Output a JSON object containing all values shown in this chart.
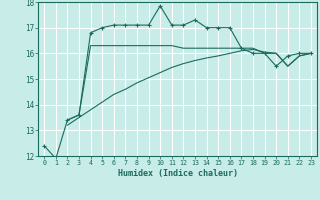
{
  "xlabel": "Humidex (Indice chaleur)",
  "bg_color": "#c8ece8",
  "grid_color": "#ffffff",
  "line_color": "#1a6b5e",
  "xlim": [
    -0.5,
    23.5
  ],
  "ylim": [
    12,
    18
  ],
  "xticks": [
    0,
    1,
    2,
    3,
    4,
    5,
    6,
    7,
    8,
    9,
    10,
    11,
    12,
    13,
    14,
    15,
    16,
    17,
    18,
    19,
    20,
    21,
    22,
    23
  ],
  "yticks": [
    12,
    13,
    14,
    15,
    16,
    17,
    18
  ],
  "series1_x": [
    0,
    1,
    2,
    3,
    4,
    5,
    6,
    7,
    8,
    9,
    10,
    11,
    12,
    13,
    14,
    15,
    16,
    17,
    18,
    19,
    20,
    21,
    22,
    23
  ],
  "series1_y": [
    12.4,
    11.9,
    13.4,
    13.6,
    16.8,
    17.0,
    17.1,
    17.1,
    17.1,
    17.1,
    17.85,
    17.1,
    17.1,
    17.3,
    17.0,
    17.0,
    17.0,
    16.2,
    16.0,
    16.0,
    15.5,
    15.9,
    16.0,
    16.0
  ],
  "series2_x": [
    2,
    3,
    4,
    5,
    6,
    7,
    8,
    9,
    10,
    11,
    12,
    13,
    14,
    15,
    16,
    17,
    18,
    19,
    20,
    21,
    22,
    23
  ],
  "series2_y": [
    13.4,
    13.6,
    16.3,
    16.3,
    16.3,
    16.3,
    16.3,
    16.3,
    16.3,
    16.3,
    16.2,
    16.2,
    16.2,
    16.2,
    16.2,
    16.2,
    16.2,
    16.0,
    16.0,
    15.5,
    15.9,
    16.0
  ],
  "series3_x": [
    2,
    3,
    4,
    5,
    6,
    7,
    8,
    9,
    10,
    11,
    12,
    13,
    14,
    15,
    16,
    17,
    18,
    19,
    20,
    21,
    22,
    23
  ],
  "series3_y": [
    13.2,
    13.5,
    13.8,
    14.1,
    14.4,
    14.6,
    14.85,
    15.05,
    15.25,
    15.45,
    15.6,
    15.72,
    15.82,
    15.9,
    16.0,
    16.1,
    16.15,
    16.05,
    16.0,
    15.5,
    15.9,
    16.0
  ]
}
